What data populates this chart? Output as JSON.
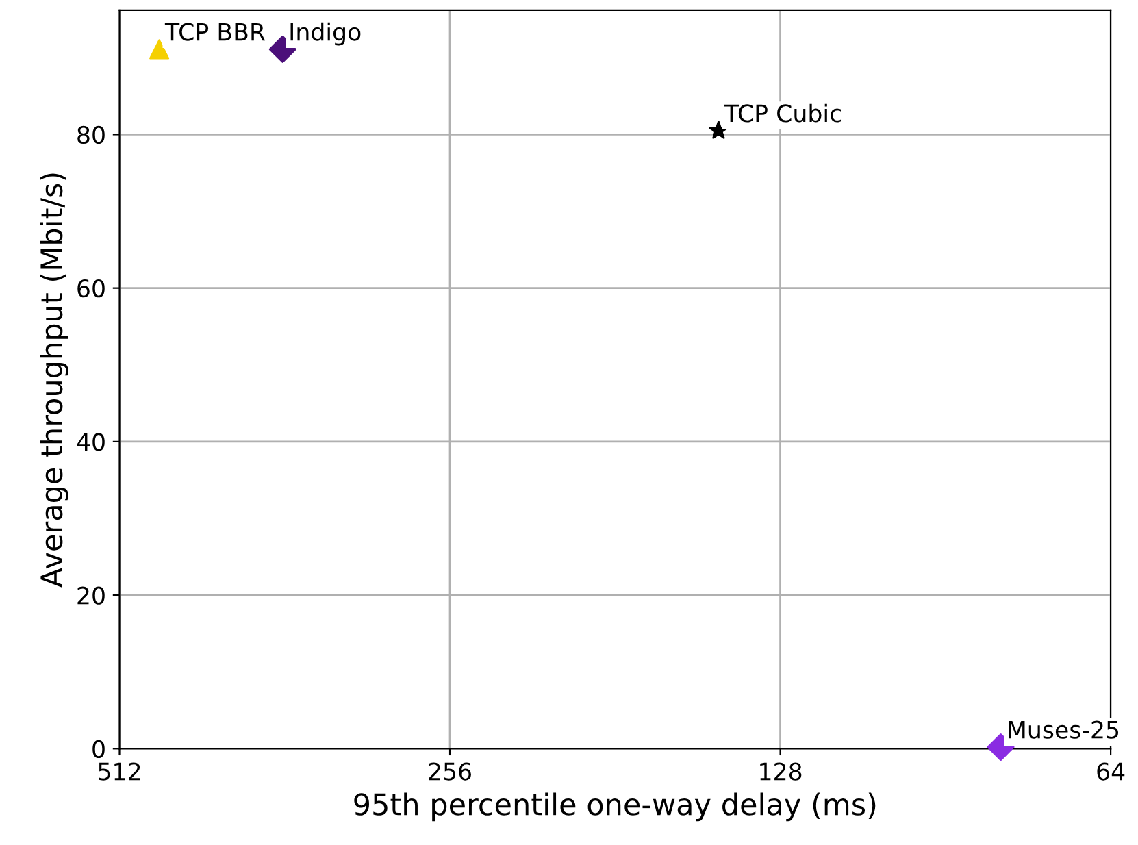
{
  "chart_data": {
    "type": "scatter",
    "xlabel": "95th percentile one-way delay (ms)",
    "ylabel": "Average throughput (Mbit/s)",
    "log": "x",
    "xlim": [
      512,
      64
    ],
    "xticks": [
      512,
      256,
      128,
      64
    ],
    "ylim": [
      0,
      96.2
    ],
    "yticks": [
      0,
      20,
      40,
      60,
      80
    ],
    "grid": true,
    "legend": false,
    "series": [
      {
        "name": "TCP BBR",
        "color": "#f5d000",
        "marker": "triangle",
        "x": [
          471
        ],
        "values": [
          91.1
        ]
      },
      {
        "name": "Indigo",
        "color": "#4b0f7a",
        "marker": "diamond",
        "x": [
          363.6
        ],
        "values": [
          91.1
        ]
      },
      {
        "name": "TCP Cubic",
        "color": "#000000",
        "marker": "star",
        "x": [
          145.7
        ],
        "values": [
          80.5
        ]
      },
      {
        "name": "Muses-25",
        "color": "#8a2be2",
        "marker": "diamond",
        "x": [
          80.6
        ],
        "values": [
          0.2
        ]
      }
    ]
  }
}
